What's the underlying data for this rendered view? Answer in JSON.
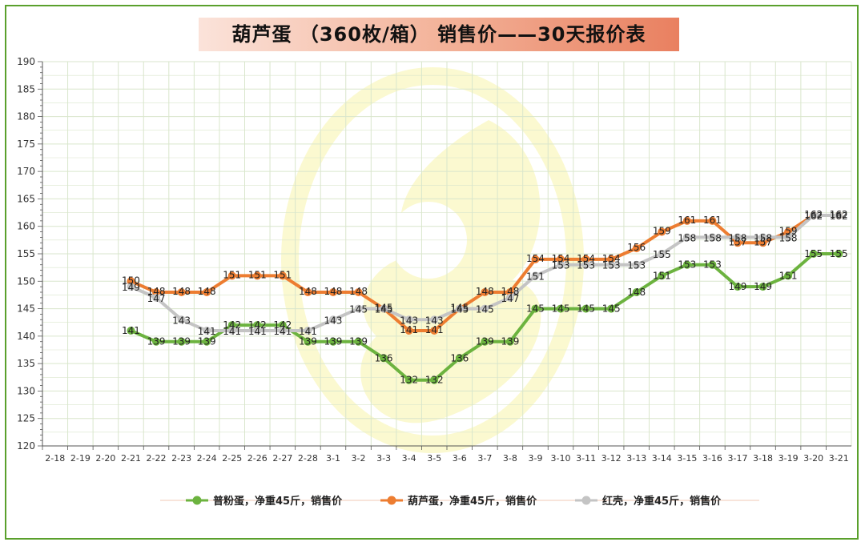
{
  "title": "葫芦蛋 （360枚/箱） 销售价——30天报价表",
  "colors": {
    "green": "#6cb33f",
    "orange": "#ed7d31",
    "gray": "#c4c4c4",
    "frame": "#5aa02c",
    "grid": "#d9e6cc"
  },
  "chart_data": {
    "type": "line",
    "title": "葫芦蛋 （360枚/箱） 销售价——30天报价表",
    "xlabel": "",
    "ylabel": "",
    "ylim": [
      120,
      190
    ],
    "yticks": [
      120,
      125,
      130,
      135,
      140,
      145,
      150,
      155,
      160,
      165,
      170,
      175,
      180,
      185,
      190
    ],
    "grid": true,
    "legend_position": "bottom",
    "categories": [
      "2-18",
      "2-19",
      "2-20",
      "2-21",
      "2-22",
      "2-23",
      "2-24",
      "2-25",
      "2-26",
      "2-27",
      "2-28",
      "3-1",
      "3-2",
      "3-3",
      "3-4",
      "3-5",
      "3-6",
      "3-7",
      "3-8",
      "3-9",
      "3-10",
      "3-11",
      "3-12",
      "3-13",
      "3-14",
      "3-15",
      "3-16",
      "3-17",
      "3-18",
      "3-19",
      "3-20",
      "3-21"
    ],
    "series": [
      {
        "name": "普粉蛋，净重45斤，销售价",
        "color": "#6cb33f",
        "values": [
          null,
          null,
          null,
          141,
          139,
          139,
          139,
          142,
          142,
          142,
          139,
          139,
          139,
          136,
          132,
          132,
          136,
          139,
          139,
          145,
          145,
          145,
          145,
          148,
          151,
          153,
          153,
          149,
          149,
          151,
          155,
          155
        ]
      },
      {
        "name": "葫芦蛋，净重45斤，销售价",
        "color": "#ed7d31",
        "values": [
          null,
          null,
          null,
          150,
          148,
          148,
          148,
          151,
          151,
          151,
          148,
          148,
          148,
          145,
          141,
          141,
          145,
          148,
          148,
          154,
          154,
          154,
          154,
          156,
          159,
          161,
          161,
          157,
          157,
          159,
          162,
          162
        ]
      },
      {
        "name": "红壳，净重45斤，销售价",
        "color": "#c4c4c4",
        "values": [
          null,
          null,
          null,
          149,
          147,
          143,
          141,
          141,
          141,
          141,
          141,
          143,
          145,
          145,
          143,
          143,
          145,
          145,
          147,
          151,
          153,
          153,
          153,
          153,
          155,
          158,
          158,
          158,
          158,
          158,
          162,
          162
        ]
      }
    ]
  }
}
